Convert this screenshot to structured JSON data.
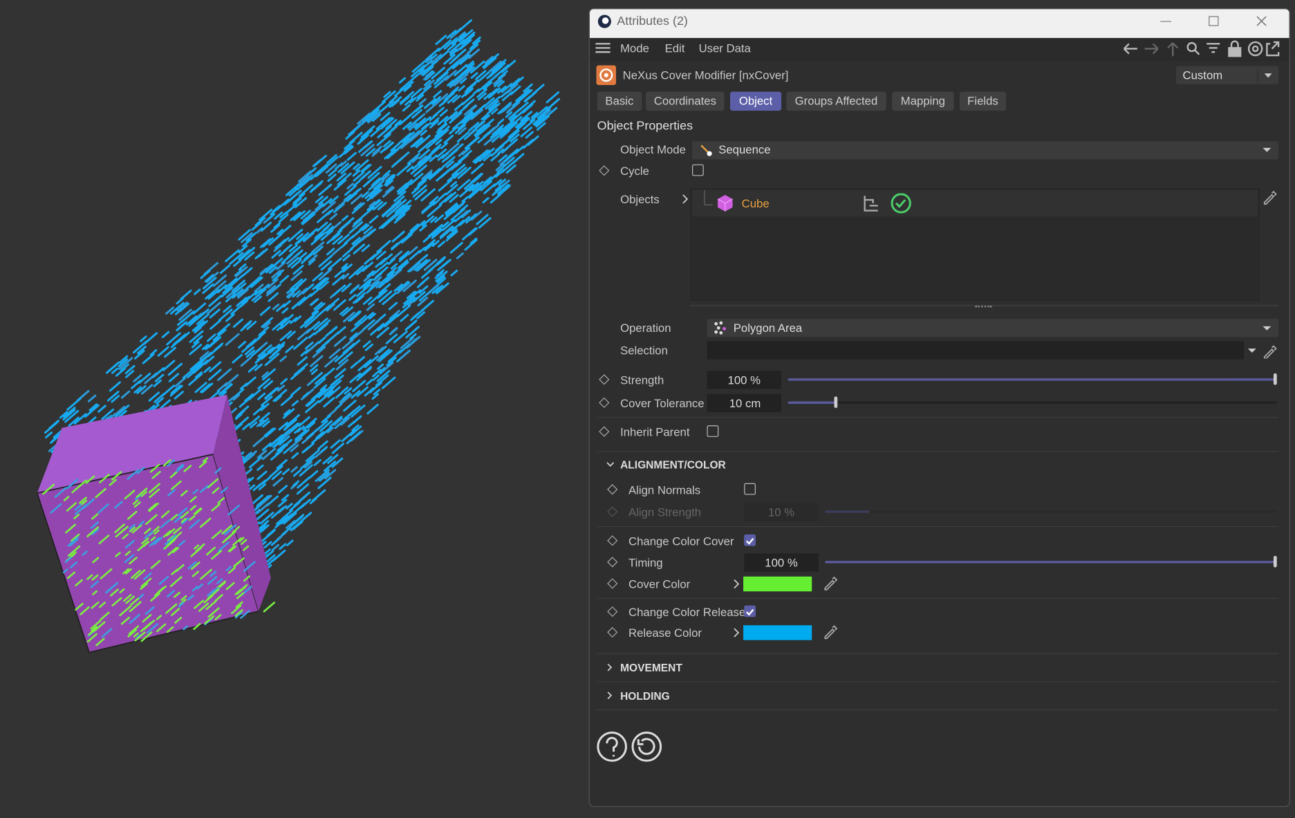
{
  "window": {
    "title": "Attributes (2)"
  },
  "menu": [
    "Mode",
    "Edit",
    "User Data"
  ],
  "object": {
    "name": "NeXus Cover Modifier [nxCover]",
    "preset": "Custom"
  },
  "tabs": [
    "Basic",
    "Coordinates",
    "Object",
    "Groups Affected",
    "Mapping",
    "Fields"
  ],
  "active_tab": 2,
  "section": "Object Properties",
  "properties": {
    "object_mode": {
      "label": "Object Mode",
      "value": "Sequence"
    },
    "cycle": {
      "label": "Cycle",
      "checked": false
    },
    "objects": {
      "label": "Objects",
      "items": [
        "Cube"
      ]
    },
    "operation": {
      "label": "Operation",
      "value": "Polygon Area"
    },
    "selection": {
      "label": "Selection"
    },
    "strength": {
      "label": "Strength",
      "value": "100 %"
    },
    "cover_tolerance": {
      "label": "Cover Tolerance",
      "value": "10 cm"
    },
    "inherit_parent": {
      "label": "Inherit Parent",
      "checked": false
    }
  },
  "alignment": {
    "title": "ALIGNMENT/COLOR",
    "align_normals": {
      "label": "Align Normals",
      "checked": false
    },
    "align_strength": {
      "label": "Align Strength",
      "value": "10 %"
    },
    "change_color_cover": {
      "label": "Change Color Cover",
      "checked": true
    },
    "timing": {
      "label": "Timing",
      "value": "100 %"
    },
    "cover_color": {
      "label": "Cover Color",
      "color": "#66ee33"
    },
    "change_color_release": {
      "label": "Change Color Release",
      "checked": true
    },
    "release_color": {
      "label": "Release Color",
      "color": "#00aaee"
    }
  },
  "collapsed_groups": [
    "MOVEMENT",
    "HOLDING"
  ]
}
